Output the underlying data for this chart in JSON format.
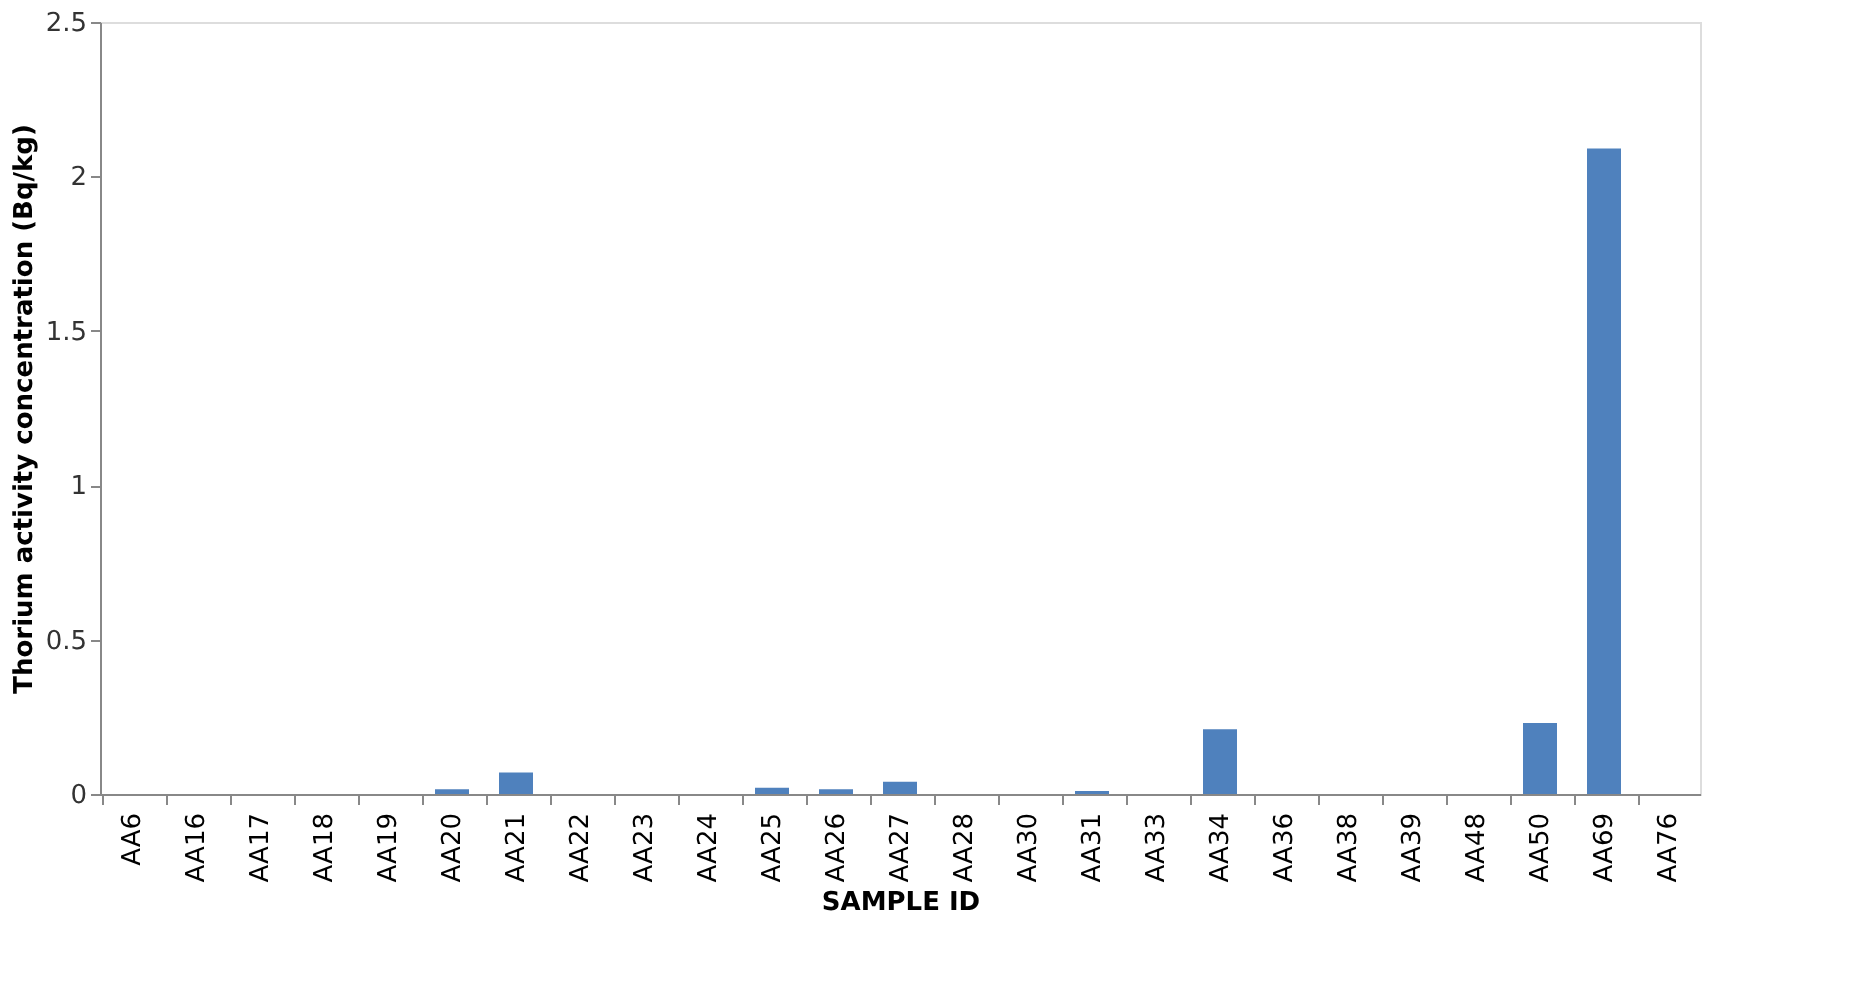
{
  "chart_data": {
    "type": "bar",
    "xlabel": "SAMPLE ID",
    "ylabel": "Thorium activity concentration (Bq/kg)",
    "categories": [
      "AA6",
      "AA16",
      "AA17",
      "AA18",
      "AA19",
      "AA20",
      "AA21",
      "AA22",
      "AA23",
      "AA24",
      "AA25",
      "AA26",
      "AA27",
      "AA28",
      "AA30",
      "AA31",
      "AA33",
      "AA34",
      "AA36",
      "AA38",
      "AA39",
      "AA48",
      "AA50",
      "AA69",
      "AA76"
    ],
    "values": [
      0,
      0,
      0,
      0,
      0,
      0.015,
      0.07,
      0,
      0,
      0,
      0.02,
      0.015,
      0.04,
      0,
      0,
      0.01,
      0,
      0.21,
      0,
      0,
      0,
      0,
      0.23,
      2.09,
      0
    ],
    "color": "#4f81bd",
    "ylim": [
      0,
      2.5
    ],
    "yticks": [
      0,
      0.5,
      1,
      1.5,
      2,
      2.5
    ],
    "grid": false
  }
}
